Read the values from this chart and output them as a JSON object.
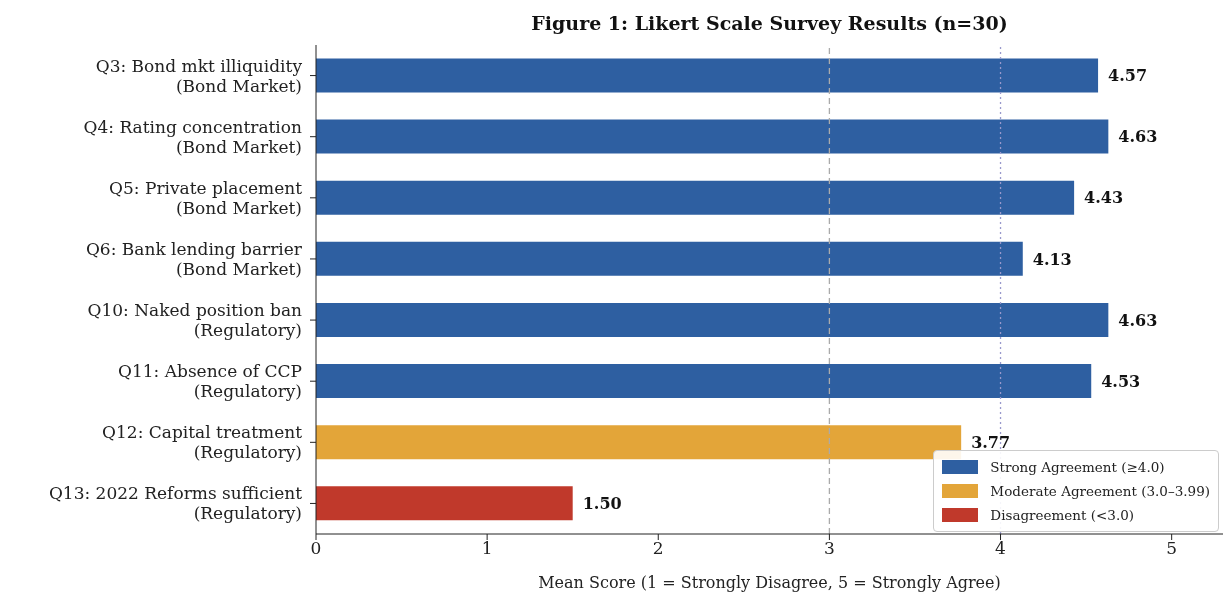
{
  "chart_data": {
    "type": "bar",
    "orientation": "horizontal",
    "stacked": true,
    "title": "Figure 1: Likert Scale Survey Results (n=30)",
    "xlabel": "Mean Score (1 = Strongly Disagree, 5 = Strongly Agree)",
    "categories": [
      "Q3: Bond mkt illiquidity\n(Bond Market)",
      "Q4: Rating concentration\n(Bond Market)",
      "Q5: Private placement\n(Bond Market)",
      "Q6: Bank lending barrier\n(Bond Market)",
      "Q10: Naked position ban\n(Regulatory)",
      "Q11: Absence of CCP\n(Regulatory)",
      "Q12: Capital treatment\n(Regulatory)",
      "Q13: 2022 Reforms sufficient\n(Regulatory)"
    ],
    "series": [
      {
        "name": "Strong Agreement (≥4.0)",
        "color": "#2e5fa1",
        "values": [
          4.57,
          4.63,
          4.43,
          4.13,
          4.63,
          4.53,
          null,
          null
        ],
        "value_labels": [
          "4.57",
          "4.63",
          "4.43",
          "4.13",
          "4.63",
          "4.53",
          null,
          null
        ]
      },
      {
        "name": "Moderate Agreement (3.0–3.99)",
        "color": "#e3a539",
        "values": [
          null,
          null,
          null,
          null,
          null,
          null,
          3.77,
          null
        ],
        "value_labels": [
          null,
          null,
          null,
          null,
          null,
          null,
          "3.77",
          null
        ]
      },
      {
        "name": "Disagreement (<3.0)",
        "color": "#c0392b",
        "values": [
          null,
          null,
          null,
          null,
          null,
          null,
          null,
          1.5
        ],
        "value_labels": [
          null,
          null,
          null,
          null,
          null,
          null,
          null,
          "1.50"
        ]
      }
    ],
    "xlim": [
      0,
      5.3
    ],
    "xticks": [
      0,
      1,
      2,
      3,
      4,
      5
    ],
    "ref_lines": [
      {
        "axis": "x",
        "value": 3,
        "color": "#aaaaaa",
        "line_style": "dashed"
      },
      {
        "axis": "x",
        "value": 4,
        "color": "#9999cc",
        "line_style": "dotted"
      }
    ],
    "grid": false,
    "legend": "bottom right"
  }
}
